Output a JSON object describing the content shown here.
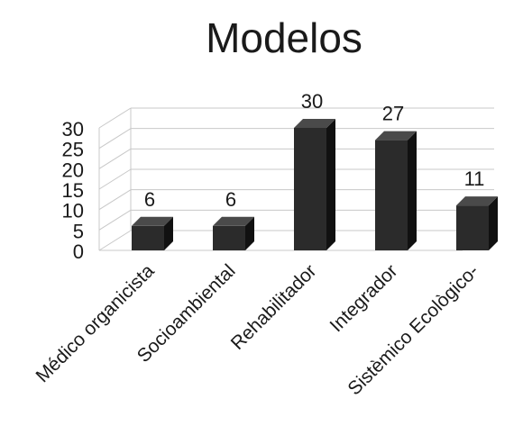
{
  "chart_data": {
    "type": "bar",
    "title": "Modelos",
    "xlabel": "",
    "ylabel": "",
    "categories": [
      "Médico organicista",
      "Socioambiental",
      "Rehabilitador",
      "Integrador",
      "Sistèmico Ecològico-"
    ],
    "values": [
      6,
      6,
      30,
      27,
      11
    ],
    "ylim": [
      0,
      30
    ],
    "yticks": [
      0,
      5,
      10,
      15,
      20,
      25,
      30
    ],
    "data_labels": true,
    "grid": true,
    "legend": "none",
    "three_d": true,
    "colors": {
      "bar_front": "#2b2b2b",
      "bar_side": "#111111",
      "bar_top": "#4a4a4a",
      "grid": "#c8c8c8",
      "text": "#1a1a1a"
    }
  }
}
